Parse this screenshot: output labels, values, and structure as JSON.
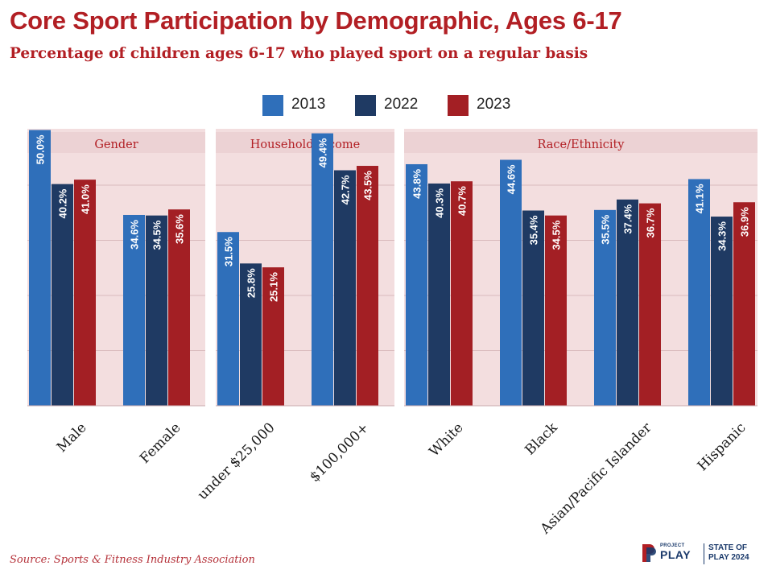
{
  "title": "Core Sport Participation by Demographic, Ages 6-17",
  "subtitle": "Percentage of children ages 6-17 who played sport on a regular basis",
  "source": "Source: Sports & Fitness Industry Association",
  "logo": {
    "project": "PROJECT",
    "play": "PLAY",
    "state_of": "STATE OF",
    "play_year": "PLAY 2024"
  },
  "colors": {
    "title": "#b21f24",
    "series_2013": "#2f6fba",
    "series_2022": "#1f3a63",
    "series_2023": "#a31f24",
    "panel": "#f3dedf",
    "panel_header": "#ecd2d4"
  },
  "chart_data": {
    "type": "bar",
    "categories": [
      "Male",
      "Female",
      "under $25,000",
      "$100,000+",
      "White",
      "Black",
      "Asian/Pacific Islander",
      "Hispanic"
    ],
    "groups": [
      {
        "name": "Gender",
        "categories": [
          "Male",
          "Female"
        ]
      },
      {
        "name": "Household income",
        "categories": [
          "under $25,000",
          "$100,000+"
        ]
      },
      {
        "name": "Race/Ethnicity",
        "categories": [
          "White",
          "Black",
          "Asian/Pacific Islander",
          "Hispanic"
        ]
      }
    ],
    "series": [
      {
        "name": "2013",
        "color": "#2f6fba",
        "values": [
          50.0,
          34.6,
          31.5,
          49.4,
          43.8,
          44.6,
          35.5,
          41.1
        ]
      },
      {
        "name": "2022",
        "color": "#1f3a63",
        "values": [
          40.2,
          34.5,
          25.8,
          42.7,
          40.3,
          35.4,
          37.4,
          34.3
        ]
      },
      {
        "name": "2023",
        "color": "#a31f24",
        "values": [
          41.0,
          35.6,
          25.1,
          43.5,
          40.7,
          34.5,
          36.7,
          36.9
        ]
      }
    ],
    "ylim": [
      0,
      50
    ],
    "value_format": "%",
    "legend_position": "top-center",
    "grid": true
  }
}
